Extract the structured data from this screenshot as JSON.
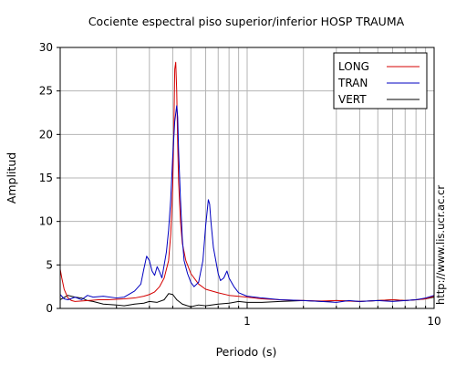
{
  "chart_data": {
    "type": "line",
    "title": "Cociente espectral piso superior/inferior  HOSP TRAUMA",
    "xlabel": "Periodo (s)",
    "ylabel": "Amplitud",
    "x_scale": "log",
    "xlim": [
      0.1,
      10
    ],
    "ylim": [
      0,
      30
    ],
    "x_tick_labels": [
      {
        "value": 1,
        "label": "1"
      },
      {
        "value": 10,
        "label": "10"
      }
    ],
    "y_ticks": [
      0,
      5,
      10,
      15,
      20,
      25,
      30
    ],
    "grid": true,
    "legend_position": "top-right",
    "side_text": "http://www.lis.ucr.ac.cr",
    "series": [
      {
        "name": "LONG",
        "color": "#d40000",
        "x": [
          0.1,
          0.102,
          0.105,
          0.11,
          0.115,
          0.12,
          0.13,
          0.14,
          0.15,
          0.16,
          0.18,
          0.2,
          0.22,
          0.25,
          0.28,
          0.3,
          0.32,
          0.34,
          0.36,
          0.38,
          0.39,
          0.4,
          0.405,
          0.41,
          0.415,
          0.42,
          0.425,
          0.43,
          0.44,
          0.45,
          0.47,
          0.5,
          0.55,
          0.6,
          0.7,
          0.8,
          1.0,
          1.2,
          1.5,
          2,
          2.5,
          3,
          4,
          5,
          6,
          7,
          8,
          9,
          10
        ],
        "y": [
          4.5,
          3.5,
          2.2,
          1.2,
          0.9,
          0.8,
          0.85,
          0.9,
          0.95,
          1.0,
          1.0,
          1.05,
          1.1,
          1.2,
          1.4,
          1.6,
          1.9,
          2.5,
          3.5,
          5.5,
          8.5,
          14.0,
          20.0,
          27.5,
          28.3,
          25.0,
          19.0,
          14.5,
          10.0,
          7.5,
          5.5,
          4.0,
          2.8,
          2.2,
          1.8,
          1.5,
          1.3,
          1.1,
          1.0,
          0.9,
          0.85,
          0.9,
          0.8,
          0.9,
          1.0,
          0.9,
          1.0,
          1.1,
          1.4
        ]
      },
      {
        "name": "TRAN",
        "color": "#0000c0",
        "x": [
          0.1,
          0.105,
          0.11,
          0.12,
          0.13,
          0.14,
          0.15,
          0.17,
          0.2,
          0.22,
          0.25,
          0.27,
          0.28,
          0.29,
          0.3,
          0.31,
          0.32,
          0.33,
          0.34,
          0.35,
          0.36,
          0.37,
          0.38,
          0.39,
          0.4,
          0.41,
          0.42,
          0.425,
          0.43,
          0.44,
          0.45,
          0.46,
          0.48,
          0.5,
          0.52,
          0.55,
          0.58,
          0.6,
          0.62,
          0.63,
          0.64,
          0.66,
          0.7,
          0.72,
          0.75,
          0.78,
          0.8,
          0.85,
          0.9,
          1.0,
          1.1,
          1.2,
          1.5,
          2,
          2.5,
          3,
          3.5,
          4,
          5,
          6,
          7,
          8,
          9,
          10
        ],
        "y": [
          1.6,
          1.1,
          1.0,
          1.3,
          1.0,
          1.5,
          1.3,
          1.4,
          1.2,
          1.3,
          2.0,
          2.8,
          4.5,
          6.0,
          5.5,
          4.3,
          3.8,
          4.8,
          4.2,
          3.5,
          5.0,
          6.5,
          9.0,
          12.5,
          17.5,
          21.5,
          23.3,
          22.0,
          18.0,
          12.5,
          8.0,
          5.5,
          4.0,
          3.0,
          2.5,
          3.0,
          5.5,
          9.5,
          12.5,
          12.0,
          10.0,
          7.0,
          4.0,
          3.2,
          3.5,
          4.3,
          3.5,
          2.5,
          1.8,
          1.4,
          1.3,
          1.2,
          1.0,
          0.9,
          0.8,
          0.7,
          0.9,
          0.8,
          0.9,
          0.8,
          0.9,
          1.0,
          1.2,
          1.5
        ]
      },
      {
        "name": "VERT",
        "color": "#000000",
        "x": [
          0.1,
          0.11,
          0.12,
          0.13,
          0.14,
          0.15,
          0.17,
          0.2,
          0.22,
          0.25,
          0.28,
          0.3,
          0.33,
          0.36,
          0.38,
          0.4,
          0.42,
          0.45,
          0.48,
          0.5,
          0.55,
          0.6,
          0.7,
          0.8,
          0.9,
          1.0,
          1.2,
          1.5,
          2,
          2.5,
          3,
          4,
          5,
          6,
          7,
          8,
          9,
          10
        ],
        "y": [
          1.0,
          1.5,
          1.3,
          1.2,
          0.9,
          0.8,
          0.5,
          0.4,
          0.3,
          0.5,
          0.6,
          0.8,
          0.7,
          1.0,
          1.7,
          1.6,
          1.0,
          0.5,
          0.3,
          0.2,
          0.4,
          0.3,
          0.5,
          0.6,
          0.8,
          0.7,
          0.7,
          0.8,
          0.9,
          0.8,
          0.9,
          0.8,
          0.9,
          1.0,
          0.9,
          1.0,
          1.1,
          1.3
        ]
      }
    ]
  }
}
